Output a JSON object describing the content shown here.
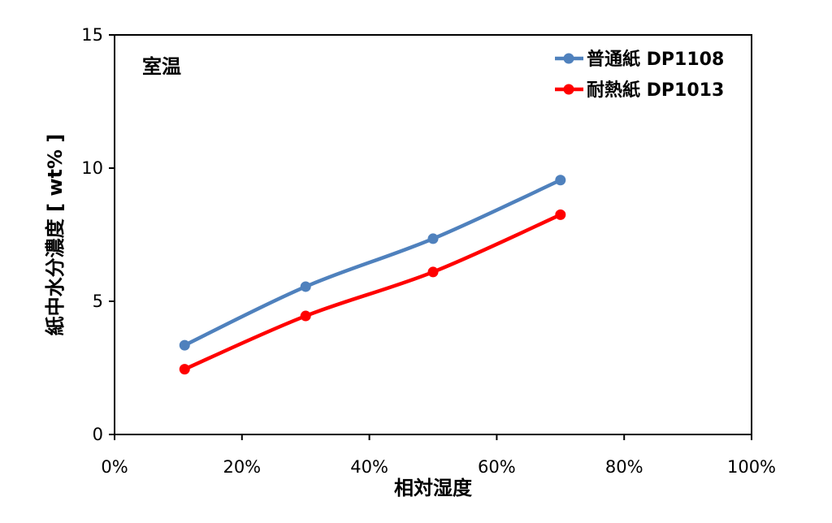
{
  "chart_data": {
    "type": "line",
    "annotation": "室温",
    "xlabel": "相対湿度",
    "ylabel": "紙中水分濃度 [ wt% ]",
    "xlim": [
      0,
      1
    ],
    "ylim": [
      0,
      15
    ],
    "x_ticks": [
      "0%",
      "20%",
      "40%",
      "60%",
      "80%",
      "100%"
    ],
    "y_ticks": [
      "0",
      "5",
      "10",
      "15"
    ],
    "x": [
      0.11,
      0.3,
      0.5,
      0.7
    ],
    "series": [
      {
        "name": "普通紙 DP1108",
        "color": "#4f81bd",
        "values": [
          3.35,
          5.55,
          7.35,
          9.55
        ]
      },
      {
        "name": "耐熱紙 DP1013",
        "color": "#ff0000",
        "values": [
          2.45,
          4.45,
          6.1,
          8.25
        ]
      }
    ],
    "legend_position": "top-right",
    "grid": false
  }
}
